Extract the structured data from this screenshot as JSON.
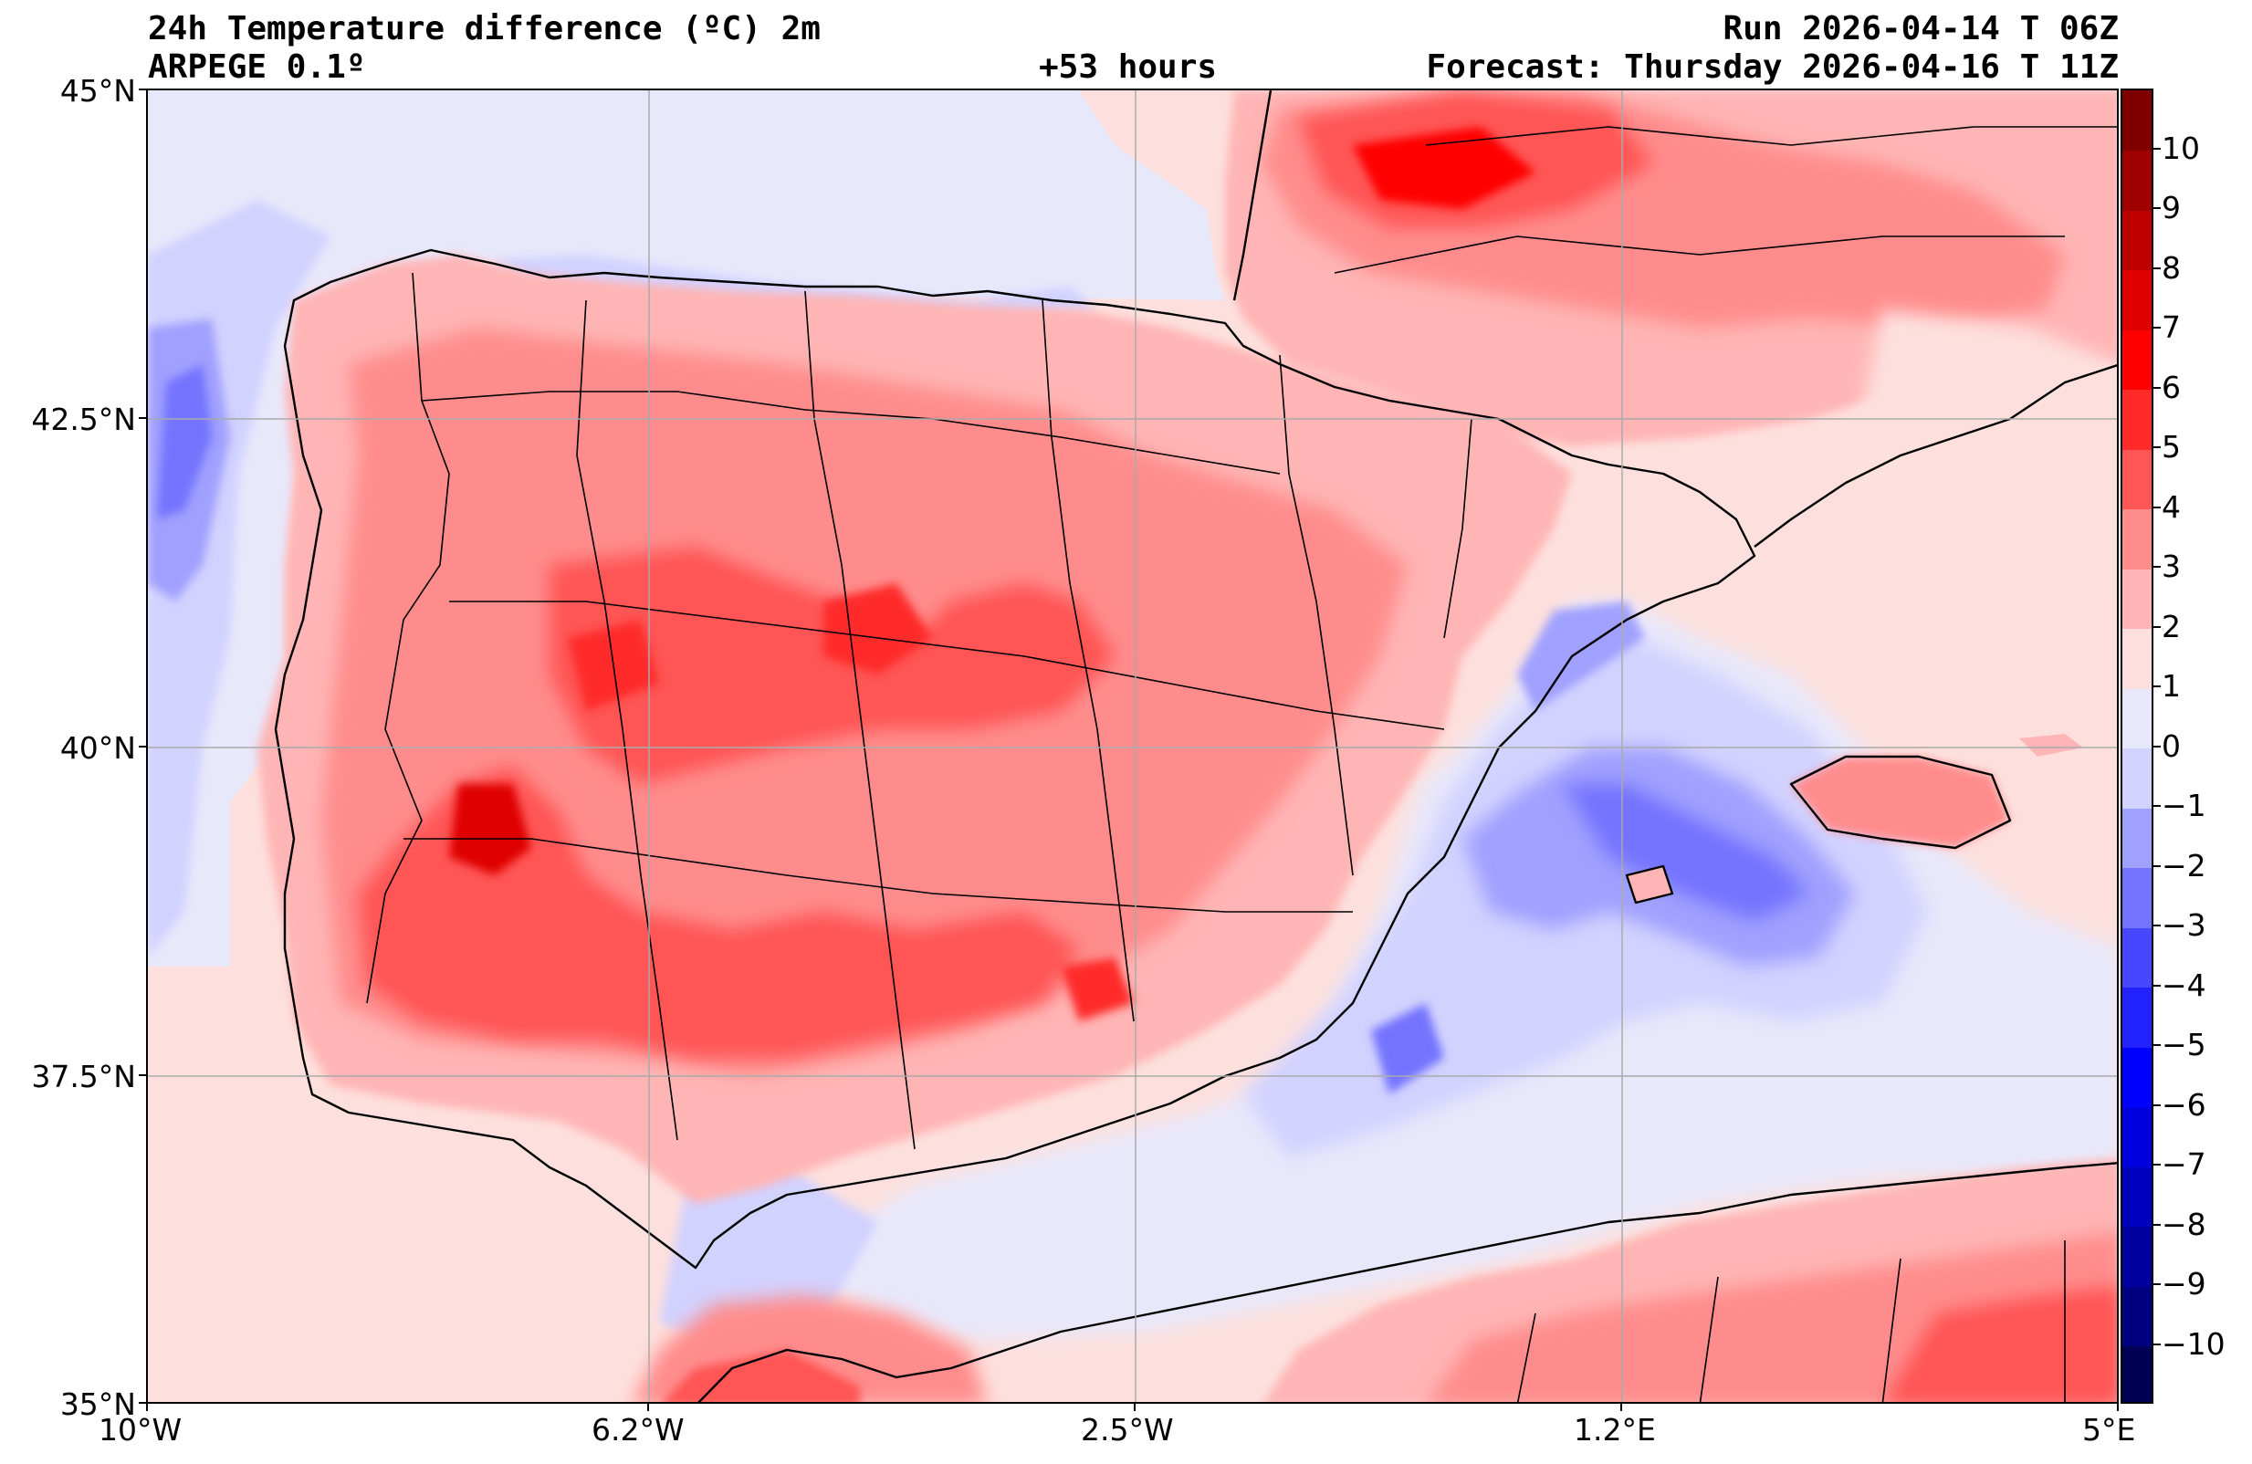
{
  "header": {
    "title_left": "24h Temperature difference (ºC) 2m",
    "model": "ARPEGE 0.1º",
    "lead_time": "+53 hours",
    "run": "Run 2026-04-14 T 06Z",
    "forecast": "Forecast: Thursday 2026-04-16 T 11Z"
  },
  "map": {
    "lon_range": [
      -10,
      5
    ],
    "lat_range": [
      35,
      45
    ],
    "lat_ticks": [
      {
        "value": 45,
        "label": "45°N"
      },
      {
        "value": 42.5,
        "label": "42.5°N"
      },
      {
        "value": 40,
        "label": "40°N"
      },
      {
        "value": 37.5,
        "label": "37.5°N"
      },
      {
        "value": 35,
        "label": "35°N"
      }
    ],
    "lon_ticks": [
      {
        "value": -10,
        "label": "10°W"
      },
      {
        "value": -6.2,
        "label": "6.2°W"
      },
      {
        "value": -2.5,
        "label": "2.5°W"
      },
      {
        "value": 1.2,
        "label": "1.2°E"
      },
      {
        "value": 5,
        "label": "5°E"
      }
    ]
  },
  "colorbar": {
    "levels": [
      -11,
      -10,
      -9,
      -8,
      -7,
      -6,
      -5,
      -4,
      -3,
      -2,
      -1,
      0,
      1,
      2,
      3,
      4,
      5,
      6,
      7,
      8,
      9,
      10,
      11
    ],
    "colors": [
      "#000055",
      "#000080",
      "#00009f",
      "#0000bf",
      "#0000df",
      "#0000ff",
      "#2222ff",
      "#4747ff",
      "#7373ff",
      "#a0a0ff",
      "#d2d2ff",
      "#e8e8fb",
      "#fde0dd",
      "#ffb5b5",
      "#ff8c8c",
      "#ff5555",
      "#ff2b2b",
      "#ff0000",
      "#df0000",
      "#bf0000",
      "#9f0000",
      "#800000"
    ],
    "labels": [
      "−10",
      "−9",
      "−8",
      "−7",
      "−6",
      "−5",
      "−4",
      "−3",
      "−2",
      "−1",
      "0",
      "1",
      "2",
      "3",
      "4",
      "5",
      "6",
      "7",
      "8",
      "9",
      "10"
    ]
  }
}
